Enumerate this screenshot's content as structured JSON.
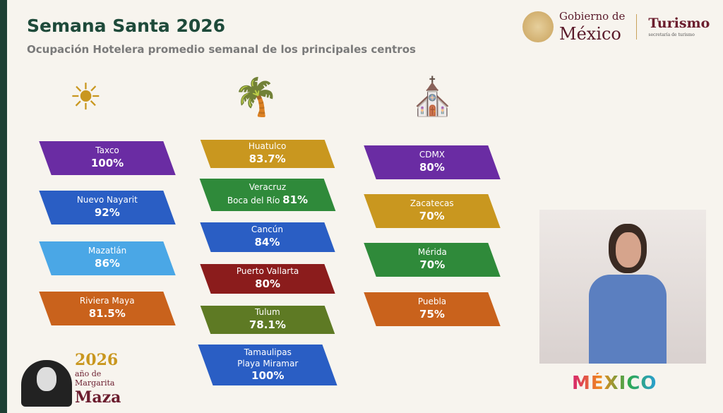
{
  "header": {
    "title": "Semana Santa 2026",
    "subtitle": "Ocupación Hotelera promedio semanal de los principales centros"
  },
  "logo": {
    "line1": "Gobierno de",
    "line2": "México",
    "dept": "Turismo",
    "dept_sub": "secretaría de turismo"
  },
  "columns": [
    {
      "icon": "sun-waves-icon",
      "items": [
        {
          "name": "Taxco",
          "value": "100%",
          "color": "#6a2ca3"
        },
        {
          "name": "Nuevo Nayarit",
          "value": "92%",
          "color": "#2a5ec4"
        },
        {
          "name": "Mazatlán",
          "value": "86%",
          "color": "#4aa7e6"
        },
        {
          "name": "Riviera Maya",
          "value": "81.5%",
          "color": "#c9621c"
        }
      ]
    },
    {
      "icon": "palm-beach-icon",
      "items": [
        {
          "name": "Huatulco",
          "value": "83.7%",
          "color": "#c9971f"
        },
        {
          "name": "Veracruz",
          "name2": "Boca del Río",
          "value": "81%",
          "color": "#2f8a3a"
        },
        {
          "name": "Cancún",
          "value": "84%",
          "color": "#2a5ec4"
        },
        {
          "name": "Puerto Vallarta",
          "value": "80%",
          "color": "#8b1c1c"
        },
        {
          "name": "Tulum",
          "value": "78.1%",
          "color": "#5e7a24"
        },
        {
          "name": "Tamaulipas",
          "name2": "Playa Miramar",
          "value": "100%",
          "color": "#2a5ec4"
        }
      ]
    },
    {
      "icon": "cathedral-icon",
      "items": [
        {
          "name": "CDMX",
          "value": "80%",
          "color": "#6a2ca3"
        },
        {
          "name": "Zacatecas",
          "value": "70%",
          "color": "#c9971f"
        },
        {
          "name": "Mérida",
          "value": "70%",
          "color": "#2f8a3a"
        },
        {
          "name": "Puebla",
          "value": "75%",
          "color": "#c9621c"
        }
      ]
    }
  ],
  "footer": {
    "year": "2026",
    "anio": "año de",
    "name1": "Margarita",
    "name2": "Maza",
    "brand": "MÉXICO"
  }
}
